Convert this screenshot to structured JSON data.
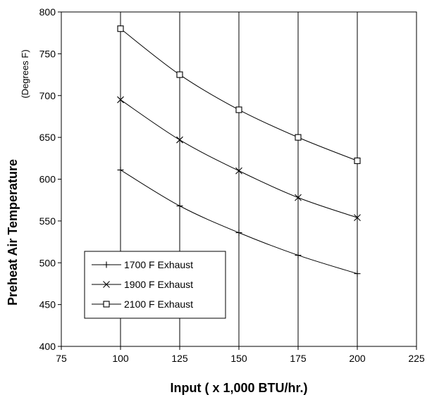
{
  "chart_data": {
    "type": "line",
    "title": "",
    "xlabel": "Input ( x 1,000 BTU/hr.)",
    "ylabel": "Preheat Air Temperature",
    "ylabel_unit": "(Degrees F)",
    "xlim": [
      75,
      225
    ],
    "ylim": [
      400,
      800
    ],
    "x_ticks": [
      "75",
      "100",
      "125",
      "150",
      "175",
      "200",
      "225"
    ],
    "y_ticks": [
      "400",
      "450",
      "500",
      "550",
      "600",
      "650",
      "700",
      "750",
      "800"
    ],
    "grid": "vertical",
    "legend_position": "lower-left",
    "x": [
      100,
      125,
      150,
      175,
      200
    ],
    "series": [
      {
        "name": "1700 F Exhaust",
        "marker": "plus",
        "values": [
          611,
          568,
          536,
          509,
          487
        ]
      },
      {
        "name": "1900 F Exhaust",
        "marker": "cross",
        "values": [
          695,
          647,
          610,
          578,
          554
        ]
      },
      {
        "name": "2100 F Exhaust",
        "marker": "square",
        "values": [
          780,
          725,
          683,
          650,
          622
        ]
      }
    ]
  }
}
